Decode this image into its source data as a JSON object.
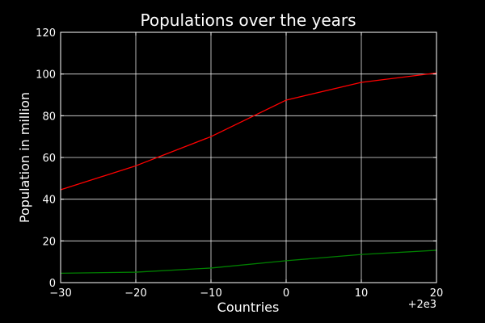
{
  "chart_data": {
    "type": "line",
    "title": "Populations over the years",
    "xlabel": "Countries",
    "ylabel": "Population in million",
    "x_offset_label": "+2e3",
    "xlim": [
      -30,
      20
    ],
    "ylim": [
      0,
      120
    ],
    "x_ticks": [
      -30,
      -20,
      -10,
      0,
      10,
      20
    ],
    "y_ticks": [
      0,
      20,
      40,
      60,
      80,
      100,
      120
    ],
    "x": [
      -30,
      -20,
      -10,
      0,
      10,
      20
    ],
    "series": [
      {
        "color": "#ff0000",
        "values": [
          44.5,
          56,
          70,
          87.5,
          96,
          100.5
        ]
      },
      {
        "color": "#008000",
        "values": [
          4.5,
          5,
          7,
          10.5,
          13.5,
          15.5
        ]
      }
    ],
    "grid": true,
    "background": "#000000",
    "foreground": "#ffffff"
  }
}
